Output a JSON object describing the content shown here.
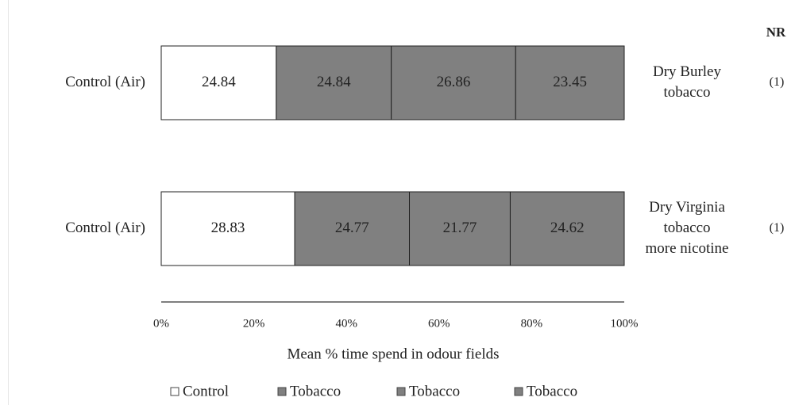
{
  "chart_data": {
    "type": "bar",
    "stacked": true,
    "orientation": "horizontal",
    "percent_stacked": true,
    "xlabel": "Mean % time spend in odour fields",
    "ylabel": "",
    "xlim": [
      0,
      100
    ],
    "x_ticks": [
      "0%",
      "20%",
      "40%",
      "60%",
      "80%",
      "100%"
    ],
    "x_tick_values": [
      0,
      20,
      40,
      60,
      80,
      100
    ],
    "nr_header": "NR",
    "legend_position": "bottom",
    "grid": false,
    "rows": [
      {
        "left_label": "Control (Air)",
        "right_label": [
          "Dry Burley",
          "tobacco"
        ],
        "nr": "(1)",
        "values": [
          24.84,
          24.84,
          26.86,
          23.45
        ],
        "value_labels": [
          "24.84",
          "24.84",
          "26.86",
          "23.45"
        ]
      },
      {
        "left_label": "Control (Air)",
        "right_label": [
          "Dry Virginia",
          "tobacco",
          "more nicotine"
        ],
        "nr": "(1)",
        "values": [
          28.83,
          24.77,
          21.77,
          24.62
        ],
        "value_labels": [
          "28.83",
          "24.77",
          "21.77",
          "24.62"
        ]
      }
    ],
    "series": [
      {
        "name": "Control",
        "color": "#ffffff"
      },
      {
        "name": "Tobacco",
        "color": "#808080"
      },
      {
        "name": "Tobacco",
        "color": "#808080"
      },
      {
        "name": "Tobacco",
        "color": "#808080"
      }
    ]
  }
}
